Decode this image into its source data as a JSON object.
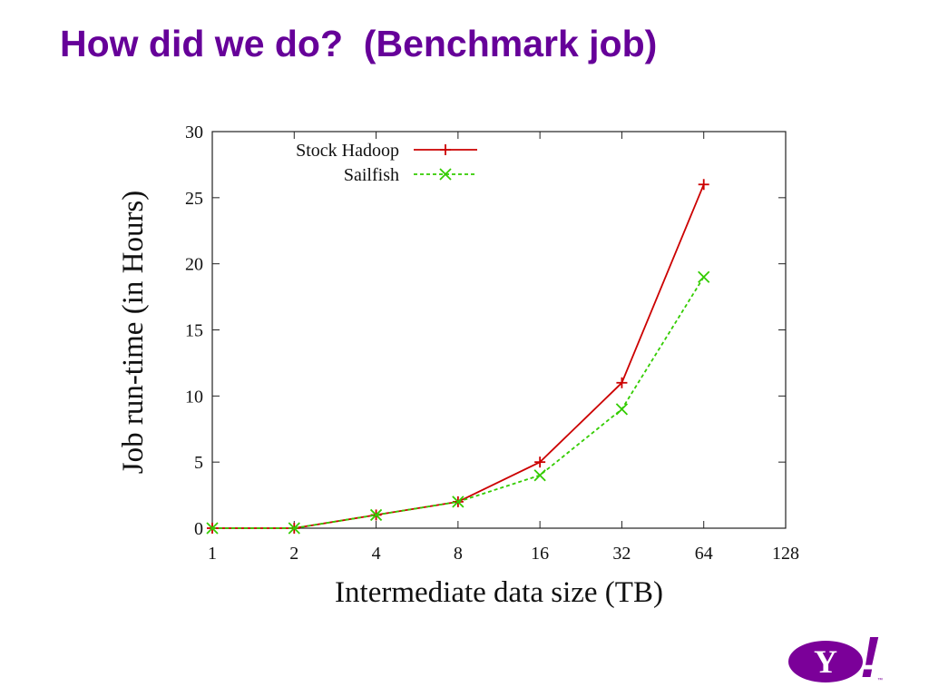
{
  "slide": {
    "title": "How did we do?  (Benchmark job)"
  },
  "logo": {
    "mark": "Y",
    "exclaim": "!",
    "tm": "™",
    "color": "#7b0099"
  },
  "chart_data": {
    "type": "line",
    "xlabel": "Intermediate data size (TB)",
    "ylabel": "Job run-time (in Hours)",
    "x_scale": "log2",
    "xlim": [
      1,
      128
    ],
    "ylim": [
      0,
      30
    ],
    "x_ticks": [
      "1",
      "2",
      "4",
      "8",
      "16",
      "32",
      "64",
      "128"
    ],
    "y_ticks": [
      "0",
      "5",
      "10",
      "15",
      "20",
      "25",
      "30"
    ],
    "legend_position": "top-right",
    "grid": false,
    "series": [
      {
        "name": "Stock Hadoop",
        "color": "#cc0000",
        "marker": "plus",
        "line_style": "solid",
        "x": [
          1,
          2,
          4,
          8,
          16,
          32,
          64
        ],
        "y": [
          0,
          0,
          1,
          2,
          5,
          11,
          26
        ]
      },
      {
        "name": "Sailfish",
        "color": "#33cc00",
        "marker": "cross",
        "line_style": "dashed",
        "x": [
          1,
          2,
          4,
          8,
          16,
          32,
          64
        ],
        "y": [
          0,
          0,
          1,
          2,
          4,
          9,
          19
        ]
      }
    ]
  }
}
